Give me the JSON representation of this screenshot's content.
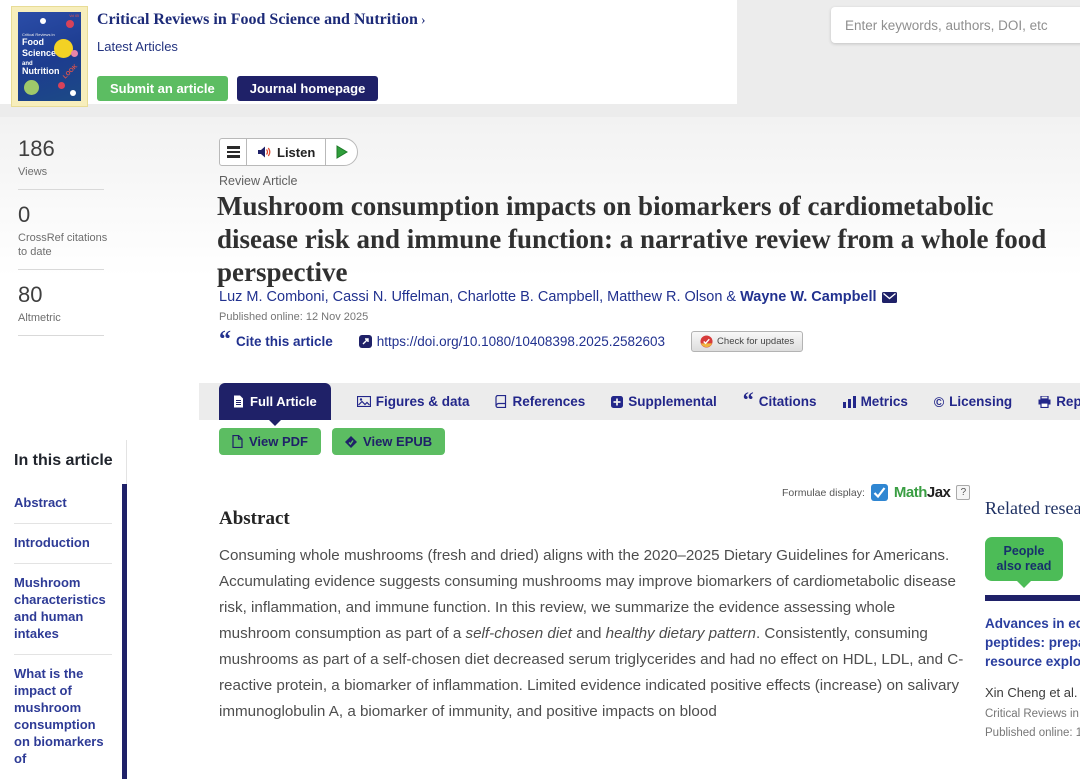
{
  "header": {
    "journal_title": "Critical Reviews in Food Science and Nutrition",
    "chevron": "›",
    "latest_articles": "Latest Articles",
    "submit_button": "Submit an article",
    "homepage_button": "Journal homepage",
    "search_placeholder": "Enter keywords, authors, DOI, etc",
    "cover": {
      "small_line": "Critical Reviews in",
      "word1": "Food",
      "word2": "Science",
      "word3": "and",
      "word4": "Nutrition",
      "accent_text": "LOOK"
    }
  },
  "metrics": [
    {
      "value": "186",
      "label": "Views"
    },
    {
      "value": "0",
      "label": "CrossRef citations to date"
    },
    {
      "value": "80",
      "label": "Altmetric"
    }
  ],
  "article": {
    "listen_label": "Listen",
    "type_label": "Review Article",
    "title": "Mushroom consumption impacts on biomarkers of cardiometabolic disease risk and immune function: a narrative review from a whole food perspective",
    "authors_regular": "Luz M. Comboni, Cassi N. Uffelman, Charlotte B. Campbell, Matthew R. Olson & ",
    "corresponding_author": "Wayne W. Campbell",
    "published": "Published online: 12 Nov 2025",
    "cite_quote_glyph": "“",
    "cite_label": "Cite this article",
    "doi": "https://doi.org/10.1080/10408398.2025.2582603",
    "check_updates": "Check for updates"
  },
  "tabs": [
    {
      "label": "Full Article"
    },
    {
      "label": "Figures & data"
    },
    {
      "label": "References"
    },
    {
      "label": "Supplemental"
    },
    {
      "label": "Citations",
      "glyph": "“"
    },
    {
      "label": "Metrics"
    },
    {
      "label": "Licensing",
      "glyph": "©"
    },
    {
      "label": "Reprints & Permissions"
    }
  ],
  "actions": {
    "view_pdf": "View PDF",
    "view_epub": "View EPUB"
  },
  "toc": {
    "heading": "In this article",
    "items": [
      "Abstract",
      "Introduction",
      "Mushroom characteristics and human intakes",
      "What is the impact of mushroom consumption on biomarkers of"
    ]
  },
  "formulae": {
    "label": "Formulae display:",
    "mathjax_math": "Math",
    "mathjax_jax": "Jax",
    "help": "?"
  },
  "abstract": {
    "heading": "Abstract",
    "segments": [
      {
        "text": "Consuming whole mushrooms (fresh and dried) aligns with the 2020–2025 Dietary Guidelines for Americans. Accumulating evidence suggests consuming mushrooms may improve biomarkers of cardiometabolic disease risk, inflammation, and immune function. In this review, we summarize the evidence assessing whole mushroom consumption as part of a "
      },
      {
        "text": "self-chosen diet",
        "italic": true
      },
      {
        "text": " and "
      },
      {
        "text": "healthy dietary pattern",
        "italic": true
      },
      {
        "text": ". Consistently, consuming mushrooms as part of a self-chosen diet decreased serum triglycerides and had no effect on HDL, LDL, and C-reactive protein, a biomarker of inflammation. Limited evidence indicated positive effects (increase) on salivary immunoglobulin A, a biomarker of immunity, and positive impacts on blood"
      }
    ]
  },
  "related": {
    "heading": "Related research",
    "tab_label": "People also read",
    "item": {
      "title_lines": [
        "Advances in edib",
        "peptides: prepara",
        "resource explorat"
      ],
      "authors": "Xin Cheng et al.",
      "journal": "Critical Reviews in",
      "published": "Published online: 1"
    }
  },
  "colors": {
    "navy": "#1f2168",
    "link_navy": "#21318f",
    "green": "#5cbd62",
    "related_green": "#4cbc57",
    "header_gray": "#ececec",
    "mathjax_green": "#3a9e43",
    "crossmark_red": "#d63b3b"
  }
}
